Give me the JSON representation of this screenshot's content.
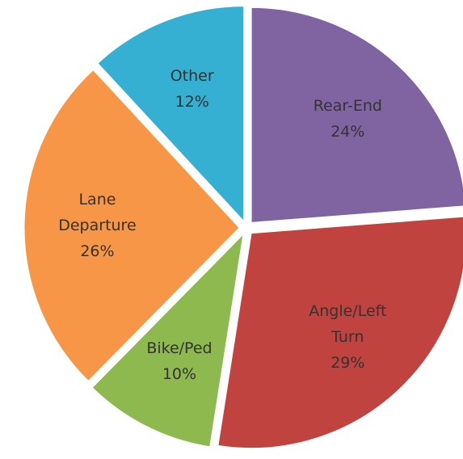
{
  "chart_data": {
    "type": "pie",
    "categories": [
      "Rear-End",
      "Angle/Left Turn",
      "Bike/Ped",
      "Lane Departure",
      "Other"
    ],
    "values": [
      24,
      29,
      10,
      26,
      12
    ],
    "value_labels": [
      "24%",
      "29%",
      "10%",
      "26%",
      "12%"
    ],
    "colors": [
      "#8064a2",
      "#c0433f",
      "#8db94f",
      "#f79646",
      "#35b0d3"
    ]
  }
}
